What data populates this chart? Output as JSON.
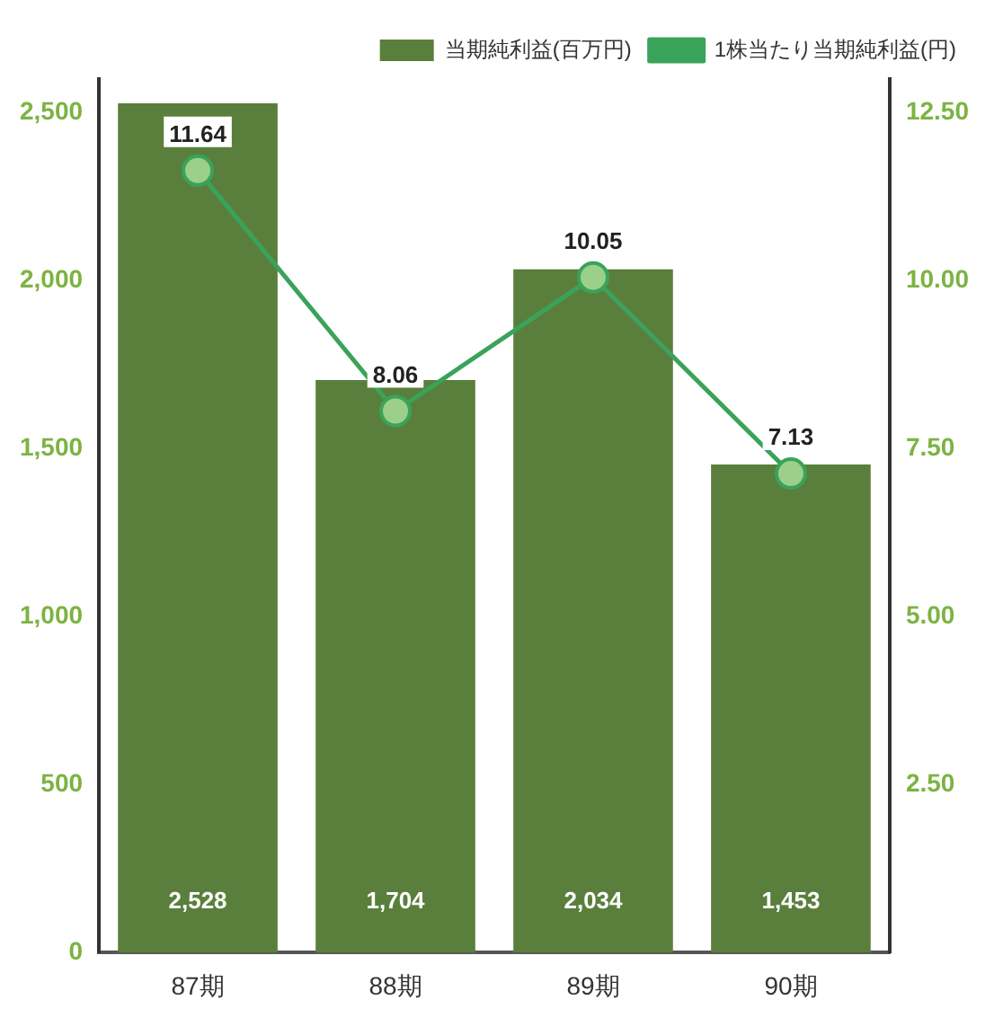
{
  "chart_data": {
    "type": "bar",
    "categories": [
      "87期",
      "88期",
      "89期",
      "90期"
    ],
    "series": [
      {
        "name": "当期純利益(百万円)",
        "color": "#5a7f3c",
        "values": [
          2528,
          1704,
          2034,
          1453
        ],
        "value_labels": [
          "2,528",
          "1,704",
          "2,034",
          "1,453"
        ]
      },
      {
        "name": "1株当たり当期純利益(円)",
        "type": "line",
        "axis": "y2",
        "color": "#3aa35a",
        "values": [
          11.64,
          8.06,
          10.05,
          7.13
        ]
      }
    ],
    "ylim": [
      0,
      2600
    ],
    "yticks": [
      0,
      500,
      {
        "value": 1000,
        "label": "1,000"
      },
      {
        "value": 1500,
        "label": "1,500"
      },
      {
        "value": 2000,
        "label": "2,000"
      },
      {
        "value": 2500,
        "label": "2,500"
      }
    ],
    "y2lim": [
      0,
      13
    ],
    "y2ticks": [
      {
        "value": 2.5,
        "label": "2.50"
      },
      {
        "value": 5,
        "label": "5.00"
      },
      {
        "value": 7.5,
        "label": "7.50"
      },
      {
        "value": 10,
        "label": "10.00"
      },
      {
        "value": 12.5,
        "label": "12.50"
      }
    ],
    "data_labels": true,
    "legend": "top right",
    "marker": "circle",
    "grid": false
  }
}
